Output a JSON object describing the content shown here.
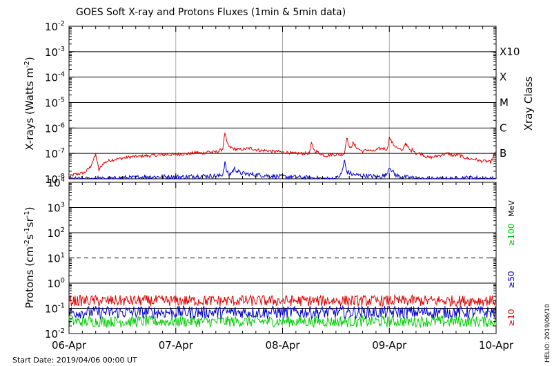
{
  "chart_data": [
    {
      "type": "line",
      "title": "GOES Soft X-ray and Protons Fluxes   (1min & 5min data)",
      "ylabel": "X-rays (Watts m",
      "ylabel_sup": "-2",
      "ylabel_close": ")",
      "right_label": "Xray Class",
      "yscale": "log",
      "ylim": [
        1e-08,
        0.01
      ],
      "y_tick_base": "10",
      "y_tick_exponents": [
        "-8",
        "-7",
        "-6",
        "-5",
        "-4",
        "-3",
        "-2"
      ],
      "class_labels": [
        "B",
        "C",
        "M",
        "X",
        "X10"
      ],
      "grid": true,
      "x_ticks": [
        "06-Apr",
        "07-Apr",
        "08-Apr",
        "09-Apr",
        "10-Apr"
      ],
      "series": [
        {
          "color": "#dd0000",
          "values_note": "",
          "x_days": [
            0.0,
            0.05,
            0.1,
            0.15,
            0.2,
            0.25,
            0.28,
            0.32,
            0.36,
            0.4,
            0.45,
            0.5,
            0.55,
            0.6,
            0.65,
            0.7,
            0.75,
            0.8,
            0.85,
            0.9,
            0.95,
            1.0,
            1.05,
            1.1,
            1.15,
            1.2,
            1.25,
            1.3,
            1.35,
            1.4,
            1.44,
            1.46,
            1.48,
            1.5,
            1.55,
            1.6,
            1.65,
            1.7,
            1.75,
            1.8,
            1.85,
            1.9,
            1.95,
            2.0,
            2.05,
            2.1,
            2.15,
            2.2,
            2.25,
            2.27,
            2.3,
            2.35,
            2.4,
            2.45,
            2.5,
            2.55,
            2.58,
            2.6,
            2.63,
            2.66,
            2.7,
            2.75,
            2.8,
            2.85,
            2.9,
            2.95,
            2.98,
            3.0,
            3.03,
            3.08,
            3.12,
            3.15,
            3.2,
            3.22,
            3.25,
            3.3,
            3.35,
            3.4,
            3.45,
            3.5,
            3.55,
            3.6,
            3.65,
            3.7,
            3.75,
            3.8,
            3.85,
            3.9,
            3.95,
            4.0
          ],
          "y": [
            1.2e-08,
            1.5e-08,
            1.6e-08,
            1.8e-08,
            3e-08,
            9e-08,
            2.2e-08,
            4e-08,
            5e-08,
            5.5e-08,
            6e-08,
            6.5e-08,
            7e-08,
            7.5e-08,
            7.5e-08,
            8e-08,
            8e-08,
            8.5e-08,
            8.5e-08,
            9e-08,
            9e-08,
            9e-08,
            9.5e-08,
            9.5e-08,
            1e-07,
            1.1e-07,
            1e-07,
            1.2e-07,
            1.1e-07,
            1.2e-07,
            1.5e-07,
            6.5e-07,
            2.5e-07,
            1.8e-07,
            1.5e-07,
            1.4e-07,
            1.5e-07,
            1.6e-07,
            1.4e-07,
            1.3e-07,
            1.3e-07,
            1.2e-07,
            1.2e-07,
            1.1e-07,
            1.1e-07,
            1e-07,
            1e-07,
            1e-07,
            1e-07,
            2.5e-07,
            1.3e-07,
            1e-07,
            8e-08,
            9e-08,
            9e-08,
            9e-08,
            1e-07,
            4.5e-07,
            1.5e-07,
            2.5e-07,
            1.6e-07,
            1.2e-07,
            1.4e-07,
            1.2e-07,
            1.5e-07,
            1.6e-07,
            1.4e-07,
            4.2e-07,
            2.5e-07,
            1.5e-07,
            1.3e-07,
            2.5e-07,
            1.2e-07,
            1.5e-07,
            1e-07,
            1e-07,
            7e-08,
            7e-08,
            8e-08,
            9e-08,
            1e-07,
            8e-08,
            9e-08,
            7e-08,
            6e-08,
            6e-08,
            5e-08,
            5e-08,
            4.5e-08,
            1.3e-07
          ]
        },
        {
          "color": "#0000cc",
          "x_days": [
            0.0,
            0.1,
            0.2,
            0.25,
            0.3,
            0.4,
            0.5,
            0.6,
            0.7,
            0.8,
            0.9,
            1.0,
            1.1,
            1.2,
            1.3,
            1.4,
            1.44,
            1.46,
            1.48,
            1.5,
            1.55,
            1.6,
            1.7,
            1.8,
            1.9,
            2.0,
            2.1,
            2.2,
            2.3,
            2.4,
            2.5,
            2.55,
            2.58,
            2.6,
            2.65,
            2.7,
            2.8,
            2.9,
            2.97,
            3.0,
            3.05,
            3.1,
            3.2,
            3.3,
            3.4,
            3.5,
            3.6,
            3.7,
            3.8,
            3.9,
            4.0
          ],
          "y": [
            1e-08,
            1e-08,
            1e-08,
            1.1e-08,
            1e-08,
            1e-08,
            1.1e-08,
            1.1e-08,
            1.2e-08,
            1.2e-08,
            1.2e-08,
            1.2e-08,
            1.2e-08,
            1.3e-08,
            1.3e-08,
            1.3e-08,
            1.5e-08,
            4.5e-08,
            1.8e-08,
            1.4e-08,
            2.5e-08,
            1.7e-08,
            1.5e-08,
            1.4e-08,
            1.3e-08,
            1.2e-08,
            1.2e-08,
            1.1e-08,
            1.1e-08,
            1e-08,
            1e-08,
            1.5e-08,
            5e-08,
            2e-08,
            1.5e-08,
            1.4e-08,
            1.3e-08,
            1.2e-08,
            1.4e-08,
            3e-08,
            1.5e-08,
            1.2e-08,
            1.1e-08,
            1e-08,
            1e-08,
            1e-08,
            1e-08,
            1.1e-08,
            1.1e-08,
            1e-08,
            1e-08
          ]
        }
      ]
    },
    {
      "type": "line",
      "ylabel": "Protons (cm",
      "ylabel_sup1": "-2",
      "ylabel_mid": "s",
      "ylabel_sup2": "-1",
      "ylabel_mid2": "sr",
      "ylabel_sup3": "-1",
      "ylabel_close": ")",
      "yscale": "log",
      "ylim": [
        0.01,
        10000
      ],
      "y_tick_base": "10",
      "y_tick_exponents": [
        "-2",
        "-1",
        "0",
        "1",
        "2",
        "3",
        "4"
      ],
      "right_unit": "MeV",
      "threshold": 10,
      "x_ticks": [
        "06-Apr",
        "07-Apr",
        "08-Apr",
        "09-Apr",
        "10-Apr"
      ],
      "series": [
        {
          "name": "≥10",
          "color": "#dd0000",
          "level": 0.2
        },
        {
          "name": "≥50",
          "color": "#0000cc",
          "level": 0.07
        },
        {
          "name": "≥100",
          "color": "#00cc00",
          "level": 0.03
        }
      ]
    }
  ],
  "footer": {
    "start_date": "Start Date: 2019/04/06 00:00 UT",
    "helio": "HELIO: 2019/06/10"
  }
}
